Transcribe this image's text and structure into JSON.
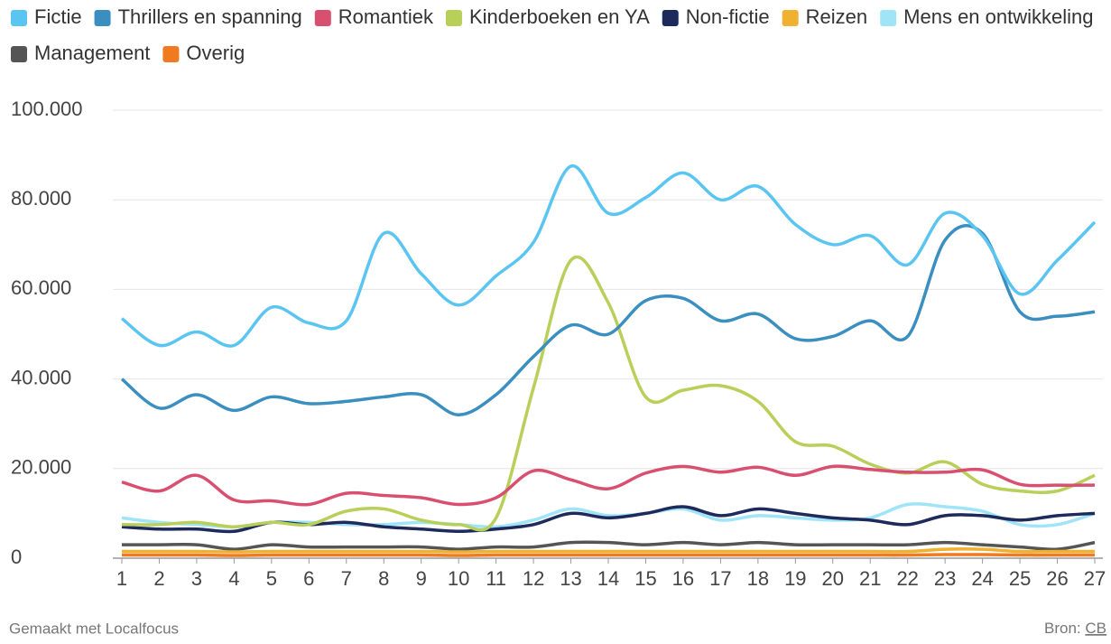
{
  "chart_data": {
    "type": "line",
    "credit": "Gemaakt met Localfocus",
    "source_label": "Bron:",
    "source": "CB",
    "x": [
      1,
      2,
      3,
      4,
      5,
      6,
      7,
      8,
      9,
      10,
      11,
      12,
      13,
      14,
      15,
      16,
      17,
      18,
      19,
      20,
      21,
      22,
      23,
      24,
      25,
      26,
      27
    ],
    "xlim": [
      1,
      27
    ],
    "xticks": [
      1,
      2,
      3,
      4,
      5,
      6,
      7,
      8,
      9,
      10,
      11,
      12,
      13,
      14,
      15,
      16,
      17,
      18,
      19,
      20,
      21,
      22,
      23,
      24,
      25,
      26,
      27
    ],
    "ylim": [
      0,
      100000
    ],
    "yticks": [
      0,
      {
        "value": 20000,
        "label": "20.000"
      },
      {
        "value": 40000,
        "label": "40.000"
      },
      {
        "value": 60000,
        "label": "60.000"
      },
      {
        "value": 80000,
        "label": "80.000"
      },
      {
        "value": 100000,
        "label": "100.000"
      }
    ],
    "grid": true,
    "series": [
      {
        "name": "Fictie",
        "color": "#5bc5f2",
        "values": [
          53500,
          47500,
          50500,
          47500,
          56000,
          52500,
          53000,
          72500,
          63500,
          56500,
          63000,
          70500,
          87500,
          77000,
          80500,
          86000,
          80000,
          83000,
          74500,
          70000,
          72000,
          65500,
          77000,
          72000,
          59000,
          66500,
          75000
        ]
      },
      {
        "name": "Thrillers en spanning",
        "color": "#3a8fc0",
        "values": [
          40000,
          33500,
          36500,
          33000,
          36000,
          34500,
          35000,
          36000,
          36500,
          32000,
          36500,
          45000,
          52000,
          50000,
          57500,
          58000,
          53000,
          54500,
          49000,
          49500,
          53000,
          49500,
          71000,
          72500,
          55000,
          54000,
          55000
        ]
      },
      {
        "name": "Romantiek",
        "color": "#d94f70",
        "values": [
          17000,
          15000,
          18500,
          13000,
          12800,
          12000,
          14500,
          14000,
          13500,
          12000,
          13500,
          19500,
          17500,
          15500,
          19000,
          20500,
          19200,
          20300,
          18500,
          20500,
          19800,
          19200,
          19200,
          19700,
          16500,
          16300,
          16300
        ]
      },
      {
        "name": "Kinderboeken en YA",
        "color": "#b8cf5a",
        "values": [
          7500,
          7500,
          8000,
          7000,
          8000,
          7500,
          10500,
          11000,
          8500,
          7500,
          9000,
          38000,
          66500,
          57000,
          36000,
          37500,
          38500,
          35000,
          26000,
          25000,
          21000,
          19000,
          21500,
          16500,
          15000,
          15000,
          18500
        ]
      },
      {
        "name": "Non-fictie",
        "color": "#1f2a5c",
        "values": [
          7000,
          6500,
          6500,
          6000,
          8000,
          7500,
          8000,
          7000,
          6500,
          6000,
          6500,
          7500,
          10000,
          9000,
          10000,
          11500,
          9500,
          11000,
          10000,
          9000,
          8500,
          7500,
          9500,
          9500,
          8500,
          9500,
          10000
        ]
      },
      {
        "name": "Reizen",
        "color": "#f0b030",
        "values": [
          1500,
          1500,
          1500,
          1400,
          1500,
          1500,
          1500,
          1500,
          1500,
          1400,
          1500,
          1500,
          1500,
          1500,
          1500,
          1500,
          1500,
          1500,
          1500,
          1500,
          1500,
          1500,
          2000,
          2000,
          1500,
          1500,
          1500
        ]
      },
      {
        "name": "Mens en ontwikkeling",
        "color": "#a0e4f8",
        "values": [
          9000,
          8000,
          7500,
          7000,
          8000,
          8000,
          7500,
          7500,
          8000,
          7500,
          7000,
          8500,
          11000,
          9500,
          10000,
          11000,
          8500,
          9500,
          9000,
          8500,
          9000,
          12000,
          11500,
          10500,
          7500,
          7500,
          10000
        ]
      },
      {
        "name": "Management",
        "color": "#555555",
        "values": [
          3000,
          3000,
          3000,
          2000,
          3000,
          2500,
          2500,
          2500,
          2500,
          2000,
          2500,
          2500,
          3500,
          3500,
          3000,
          3500,
          3000,
          3500,
          3000,
          3000,
          3000,
          3000,
          3500,
          3000,
          2500,
          2000,
          3500
        ]
      },
      {
        "name": "Overig",
        "color": "#f07a20",
        "values": [
          700,
          700,
          700,
          600,
          700,
          700,
          700,
          700,
          700,
          600,
          700,
          700,
          700,
          700,
          700,
          700,
          700,
          700,
          700,
          700,
          700,
          700,
          800,
          800,
          700,
          700,
          700
        ]
      }
    ]
  }
}
